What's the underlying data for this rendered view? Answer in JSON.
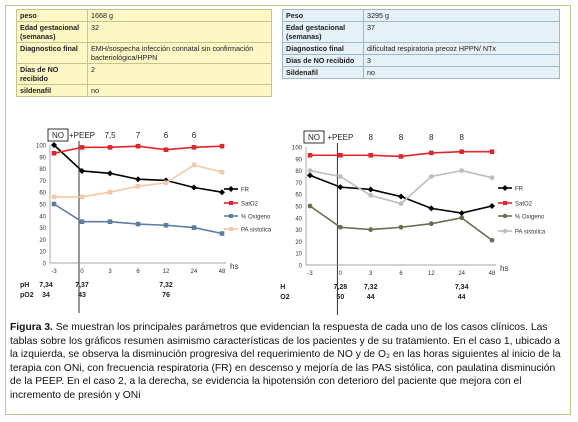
{
  "left_table": [
    {
      "k": "peso",
      "v": "1668 g"
    },
    {
      "k": "Edad gestacional (semanas)",
      "v": "32"
    },
    {
      "k": "Diagnostico final",
      "v": "EMH/sospecha infección connatal sin confirmación bacteriológica/HPPN"
    },
    {
      "k": "Días de NO recibido",
      "v": "2"
    },
    {
      "k": "sildenafil",
      "v": "no"
    }
  ],
  "right_table": [
    {
      "k": "Peso",
      "v": "3295 g"
    },
    {
      "k": "Edad gestacional (semanas)",
      "v": "37"
    },
    {
      "k": "Diagnostico final",
      "v": "dificultad respiratoria precoz HPPN/ NTx"
    },
    {
      "k": "Días de NO recibido",
      "v": "3"
    },
    {
      "k": "Sildenafil",
      "v": "no"
    }
  ],
  "chart_data": [
    {
      "type": "line",
      "x": [
        "-3",
        "0",
        "3",
        "6",
        "12",
        "24",
        "48"
      ],
      "x_unit": "hs",
      "ylim": [
        0,
        100
      ],
      "yticks": [
        "0",
        "10",
        "20",
        "30",
        "40",
        "50",
        "60",
        "70",
        "80",
        "90",
        "100"
      ],
      "top_labels": [
        "NO",
        "+PEEP",
        "7,5",
        "7",
        "6",
        "6"
      ],
      "series": [
        {
          "name": "FR",
          "color": "#000000",
          "values": [
            100,
            78,
            76,
            71,
            70,
            64,
            60
          ]
        },
        {
          "name": "SatO2",
          "color": "#e0262b",
          "values": [
            93,
            98,
            98,
            99,
            96,
            98,
            99
          ]
        },
        {
          "name": "% Oxigeno",
          "color": "#5d7ea0",
          "values": [
            50,
            35,
            35,
            33,
            32,
            30,
            25
          ]
        },
        {
          "name": "PA sistolica",
          "color": "#f2c9a6",
          "values": [
            56,
            56,
            60,
            65,
            68,
            83,
            77
          ]
        }
      ],
      "bottom_rows": [
        {
          "label": "pH",
          "values": [
            "7,34",
            "7,37",
            "",
            "",
            "7,32",
            ""
          ]
        },
        {
          "label": "pO2",
          "values": [
            "34",
            "43",
            "",
            "",
            "76",
            ""
          ]
        }
      ]
    },
    {
      "type": "line",
      "x": [
        "-3",
        "0",
        "3",
        "6",
        "12",
        "24",
        "48"
      ],
      "x_unit": "hs",
      "ylim": [
        0,
        100
      ],
      "yticks": [
        "0",
        "10",
        "20",
        "30",
        "40",
        "50",
        "60",
        "70",
        "80",
        "90",
        "100"
      ],
      "top_labels": [
        "NO",
        "+PEEP",
        "8",
        "8",
        "8",
        "8"
      ],
      "series": [
        {
          "name": "FR",
          "color": "#000000",
          "values": [
            76,
            66,
            64,
            58,
            48,
            44,
            50
          ]
        },
        {
          "name": "SatO2",
          "color": "#e0262b",
          "values": [
            93,
            93,
            93,
            92,
            95,
            96,
            96
          ]
        },
        {
          "name": "% Oxigeno",
          "color": "#6e6b53",
          "values": [
            50,
            32,
            30,
            32,
            35,
            40,
            21
          ]
        },
        {
          "name": "PA sistolica",
          "color": "#bdbdbd",
          "values": [
            80,
            75,
            59,
            52,
            75,
            80,
            74
          ]
        }
      ],
      "bottom_rows": [
        {
          "label": "pH",
          "values": [
            "",
            "7,28",
            "7,32",
            "",
            "",
            "7,34"
          ]
        },
        {
          "label": "pO2",
          "values": [
            "",
            "50",
            "44",
            "",
            "",
            "44"
          ]
        }
      ]
    }
  ],
  "caption": {
    "label": "Figura 3.",
    "text": "Se muestran los principales parámetros que evidencian la respuesta de cada uno de los casos clínicos. Las tablas sobre los gráficos resumen asimismo características de los pacientes y de su tratamiento. En el caso 1, ubicado a la izquierda, se observa la disminución progresiva del requerimiento de NO y de O₂ en las horas siguientes al inicio de la terapia con ONi, con frecuencia respiratoria (FR) en descenso y mejoría de las PAS sistólica, con paulatina disminución de la PEEP. En el caso 2, a la derecha, se evidencia la hipotensión con deterioro del paciente que mejora con el incremento de presión y ONi"
  },
  "colors": {
    "frame_border": "#b7c98b",
    "left_table_bg": "#fdf6c5",
    "right_table_bg": "#e6f0f7"
  }
}
